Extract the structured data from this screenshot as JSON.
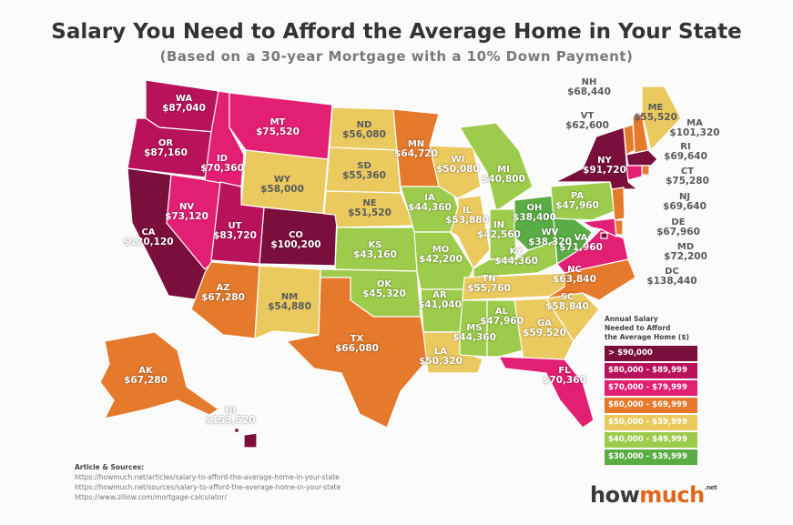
{
  "header": {
    "title": "Salary You Need to Afford the Average Home in Your State",
    "subtitle": "(Based on a 30-year Mortgage with a 10% Down Payment)"
  },
  "colors": {
    "over90": "#7a0f3b",
    "r80": "#b8125a",
    "r70": "#e31f74",
    "r60": "#e5792c",
    "r50": "#eac95f",
    "r40": "#9dcb4b",
    "r30": "#5aac44"
  },
  "legend": {
    "title_lines": [
      "Annual Salary",
      "Needed to Afford",
      "the Average Home ($)"
    ],
    "items": [
      {
        "label": "> $90,000",
        "color": "#7a0f3b"
      },
      {
        "label": "$80,000 - $89,999",
        "color": "#b8125a"
      },
      {
        "label": "$70,000 - $79,999",
        "color": "#e31f74"
      },
      {
        "label": "$60,000 - $69,999",
        "color": "#e5792c"
      },
      {
        "label": "$50,000 - $59,999",
        "color": "#eac95f"
      },
      {
        "label": "$40,000 - $49,999",
        "color": "#9dcb4b"
      },
      {
        "label": "$30,000 - $39,999",
        "color": "#5aac44"
      }
    ]
  },
  "states": {
    "WA": {
      "abbr": "WA",
      "salary": "$87,040"
    },
    "OR": {
      "abbr": "OR",
      "salary": "$87,160"
    },
    "CA": {
      "abbr": "CA",
      "salary": "$120,120"
    },
    "NV": {
      "abbr": "NV",
      "salary": "$73,120"
    },
    "ID": {
      "abbr": "ID",
      "salary": "$70,360"
    },
    "MT": {
      "abbr": "MT",
      "salary": "$75,520"
    },
    "WY": {
      "abbr": "WY",
      "salary": "$58,000"
    },
    "UT": {
      "abbr": "UT",
      "salary": "$83,720"
    },
    "CO": {
      "abbr": "CO",
      "salary": "$100,200"
    },
    "AZ": {
      "abbr": "AZ",
      "salary": "$67,280"
    },
    "NM": {
      "abbr": "NM",
      "salary": "$54,880"
    },
    "ND": {
      "abbr": "ND",
      "salary": "$56,080"
    },
    "SD": {
      "abbr": "SD",
      "salary": "$55,360"
    },
    "NE": {
      "abbr": "NE",
      "salary": "$51,520"
    },
    "KS": {
      "abbr": "KS",
      "salary": "$43,160"
    },
    "OK": {
      "abbr": "OK",
      "salary": "$45,320"
    },
    "TX": {
      "abbr": "TX",
      "salary": "$66,080"
    },
    "MN": {
      "abbr": "MN",
      "salary": "$64,720"
    },
    "IA": {
      "abbr": "IA",
      "salary": "$44,360"
    },
    "MO": {
      "abbr": "MO",
      "salary": "$42,200"
    },
    "AR": {
      "abbr": "AR",
      "salary": "$41,040"
    },
    "LA": {
      "abbr": "LA",
      "salary": "$50,320"
    },
    "WI": {
      "abbr": "WI",
      "salary": "$50,080"
    },
    "IL": {
      "abbr": "IL",
      "salary": "$53,880"
    },
    "MI": {
      "abbr": "MI",
      "salary": "$40,800"
    },
    "IN": {
      "abbr": "IN",
      "salary": "$42,560"
    },
    "OH": {
      "abbr": "OH",
      "salary": "$38,400"
    },
    "KY": {
      "abbr": "KY",
      "salary": "$44,360"
    },
    "TN": {
      "abbr": "TN",
      "salary": "$55,760"
    },
    "MS": {
      "abbr": "MS",
      "salary": "$44,360"
    },
    "AL": {
      "abbr": "AL",
      "salary": "$47,960"
    },
    "GA": {
      "abbr": "GA",
      "salary": "$59,520"
    },
    "FL": {
      "abbr": "FL",
      "salary": "$70,360"
    },
    "SC": {
      "abbr": "SC",
      "salary": "$58,840"
    },
    "NC": {
      "abbr": "NC",
      "salary": "$63,840"
    },
    "VA": {
      "abbr": "VA",
      "salary": "$71,960"
    },
    "WV": {
      "abbr": "WV",
      "salary": "$38,320"
    },
    "PA": {
      "abbr": "PA",
      "salary": "$47,960"
    },
    "NY": {
      "abbr": "NY",
      "salary": "$91,720"
    },
    "VT": {
      "abbr": "VT",
      "salary": "$62,600"
    },
    "NH": {
      "abbr": "NH",
      "salary": "$68,440"
    },
    "ME": {
      "abbr": "ME",
      "salary": "$55,520"
    },
    "MA": {
      "abbr": "MA",
      "salary": "$101,320"
    },
    "RI": {
      "abbr": "RI",
      "salary": "$69,640"
    },
    "CT": {
      "abbr": "CT",
      "salary": "$75,280"
    },
    "NJ": {
      "abbr": "NJ",
      "salary": "$69,640"
    },
    "DE": {
      "abbr": "DE",
      "salary": "$67,960"
    },
    "MD": {
      "abbr": "MD",
      "salary": "$72,200"
    },
    "DC": {
      "abbr": "DC",
      "salary": "$138,440"
    },
    "AK": {
      "abbr": "AK",
      "salary": "$67,280"
    },
    "HI": {
      "abbr": "HI",
      "salary": "$153,520"
    }
  },
  "sources": {
    "heading": "Article & Sources:",
    "lines": [
      "https://howmuch.net/articles/salary-to-afford-the-average-home-in-your-state",
      "https://howmuch.net/sources/salary-to-afford-the-average-home-in-your-state",
      "https://www.zillow.com/mortgage-calculator/"
    ]
  },
  "logo": {
    "main": "how",
    "accent": "much",
    "suffix": ".net"
  }
}
